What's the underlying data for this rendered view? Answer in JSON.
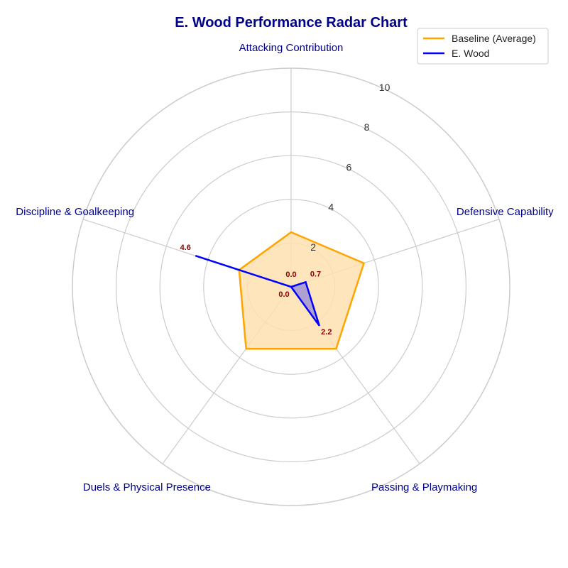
{
  "chart_data": {
    "type": "radar",
    "title": "E. Wood Performance Radar Chart",
    "categories": [
      "Attacking Contribution",
      "Defensive Capability",
      "Passing & Playmaking",
      "Duels & Physical Presence",
      "Discipline & Goalkeeping"
    ],
    "rlim": [
      0,
      10
    ],
    "r_ticks": [
      "2",
      "4",
      "6",
      "8",
      "10"
    ],
    "grid": true,
    "legend_position": "top-right",
    "series": [
      {
        "name": "Baseline (Average)",
        "values": [
          2.5,
          3.5,
          3.5,
          3.5,
          2.5
        ],
        "color": "#ffa500",
        "fill": "#ffe0b0"
      },
      {
        "name": "E. Wood",
        "values": [
          0.0,
          0.7,
          2.2,
          0.0,
          4.6
        ],
        "color": "#0000ff",
        "fill": "#9b8fd8"
      }
    ],
    "data_labels": [
      "0.0",
      "0.7",
      "2.2",
      "0.0",
      "4.6"
    ]
  }
}
